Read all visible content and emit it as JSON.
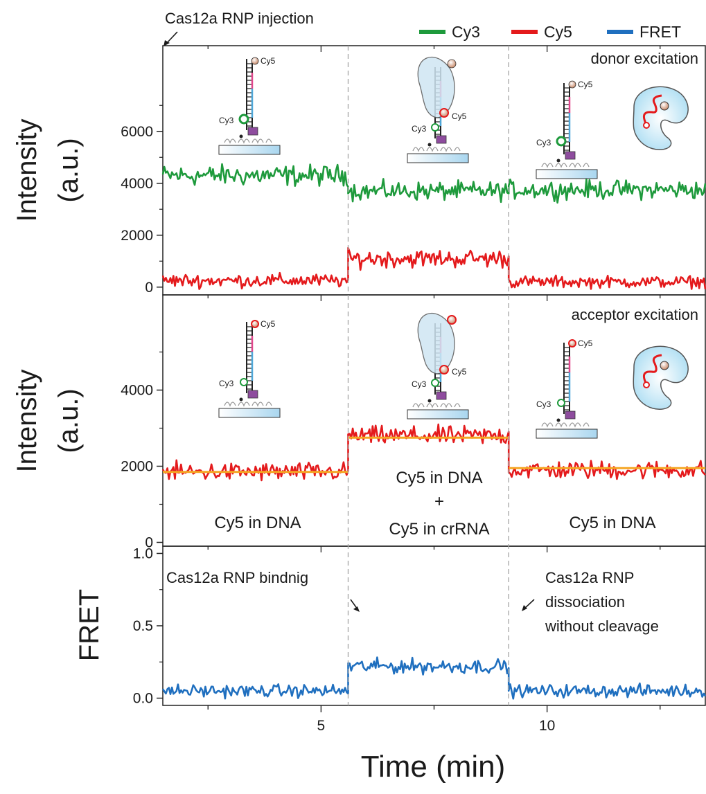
{
  "chart_data": {
    "type": "line",
    "xlabel": "Time (min)",
    "x_range": [
      1.5,
      13.5
    ],
    "x_ticks": [
      5,
      10
    ],
    "legend": {
      "placement": "top-right",
      "entries": [
        {
          "name": "Cy3",
          "color": "#1e9a3c"
        },
        {
          "name": "Cy5",
          "color": "#e41a1c"
        },
        {
          "name": "FRET",
          "color": "#1f6fbf"
        }
      ]
    },
    "events": {
      "injection": {
        "label": "Cas12a RNP injection",
        "x": 1.5
      },
      "binding": {
        "label": "Cas12a RNP bindnig",
        "x": 5.6
      },
      "dissociation": {
        "label": [
          "Cas12a RNP",
          "dissociation",
          "without cleavage"
        ],
        "x": 9.15
      }
    },
    "panels": [
      {
        "ylabel": [
          "Intensity",
          "(a.u.)"
        ],
        "title": "donor excitation",
        "ylim": [
          -300,
          9300
        ],
        "yticks": [
          0,
          2000,
          4000,
          6000
        ],
        "series": [
          {
            "name": "Cy3",
            "color": "#1e9a3c",
            "segments": [
              [
                1.5,
                5.6,
                4300,
                280
              ],
              [
                5.6,
                9.15,
                3700,
                250
              ],
              [
                9.15,
                13.5,
                3750,
                250
              ]
            ]
          },
          {
            "name": "Cy5",
            "color": "#e41a1c",
            "segments": [
              [
                1.5,
                5.6,
                250,
                180
              ],
              [
                5.6,
                9.15,
                1100,
                240
              ],
              [
                9.15,
                13.5,
                200,
                160
              ]
            ]
          }
        ]
      },
      {
        "ylabel": [
          "Intensity",
          "(a.u.)"
        ],
        "title": "acceptor excitation",
        "ylim": [
          -100,
          6500
        ],
        "yticks": [
          0,
          2000,
          4000
        ],
        "series": [
          {
            "name": "Cy5",
            "color": "#e41a1c",
            "segments": [
              [
                1.5,
                5.6,
                1850,
                170
              ],
              [
                5.6,
                9.15,
                2800,
                170
              ],
              [
                9.15,
                13.5,
                1900,
                170
              ]
            ]
          }
        ],
        "fit_levels": [
          [
            1.5,
            5.6,
            1850
          ],
          [
            5.6,
            9.15,
            2750
          ],
          [
            9.15,
            13.5,
            1950
          ]
        ],
        "fit_color": "#f5a623",
        "region_labels": [
          {
            "lines": [
              "Cy5 in DNA"
            ],
            "x": 3.55
          },
          {
            "lines": [
              "Cy5 in DNA",
              "+",
              "Cy5 in crRNA"
            ],
            "x": 7.37
          },
          {
            "lines": [
              "Cy5 in DNA"
            ],
            "x": 11.3
          }
        ]
      },
      {
        "ylabel": [
          "FRET"
        ],
        "ylim": [
          -0.05,
          1.05
        ],
        "yticks": [
          0.0,
          0.5,
          1.0
        ],
        "ytick_labels": [
          "0.0",
          "0.5",
          "1.0"
        ],
        "series": [
          {
            "name": "FRET",
            "color": "#1f6fbf",
            "segments": [
              [
                1.5,
                5.6,
                0.05,
                0.03
              ],
              [
                5.6,
                9.15,
                0.22,
                0.035
              ],
              [
                9.15,
                13.5,
                0.05,
                0.03
              ]
            ]
          }
        ]
      }
    ]
  },
  "illustrations": {
    "dye_cy3": "Cy3",
    "dye_cy5": "Cy5"
  }
}
